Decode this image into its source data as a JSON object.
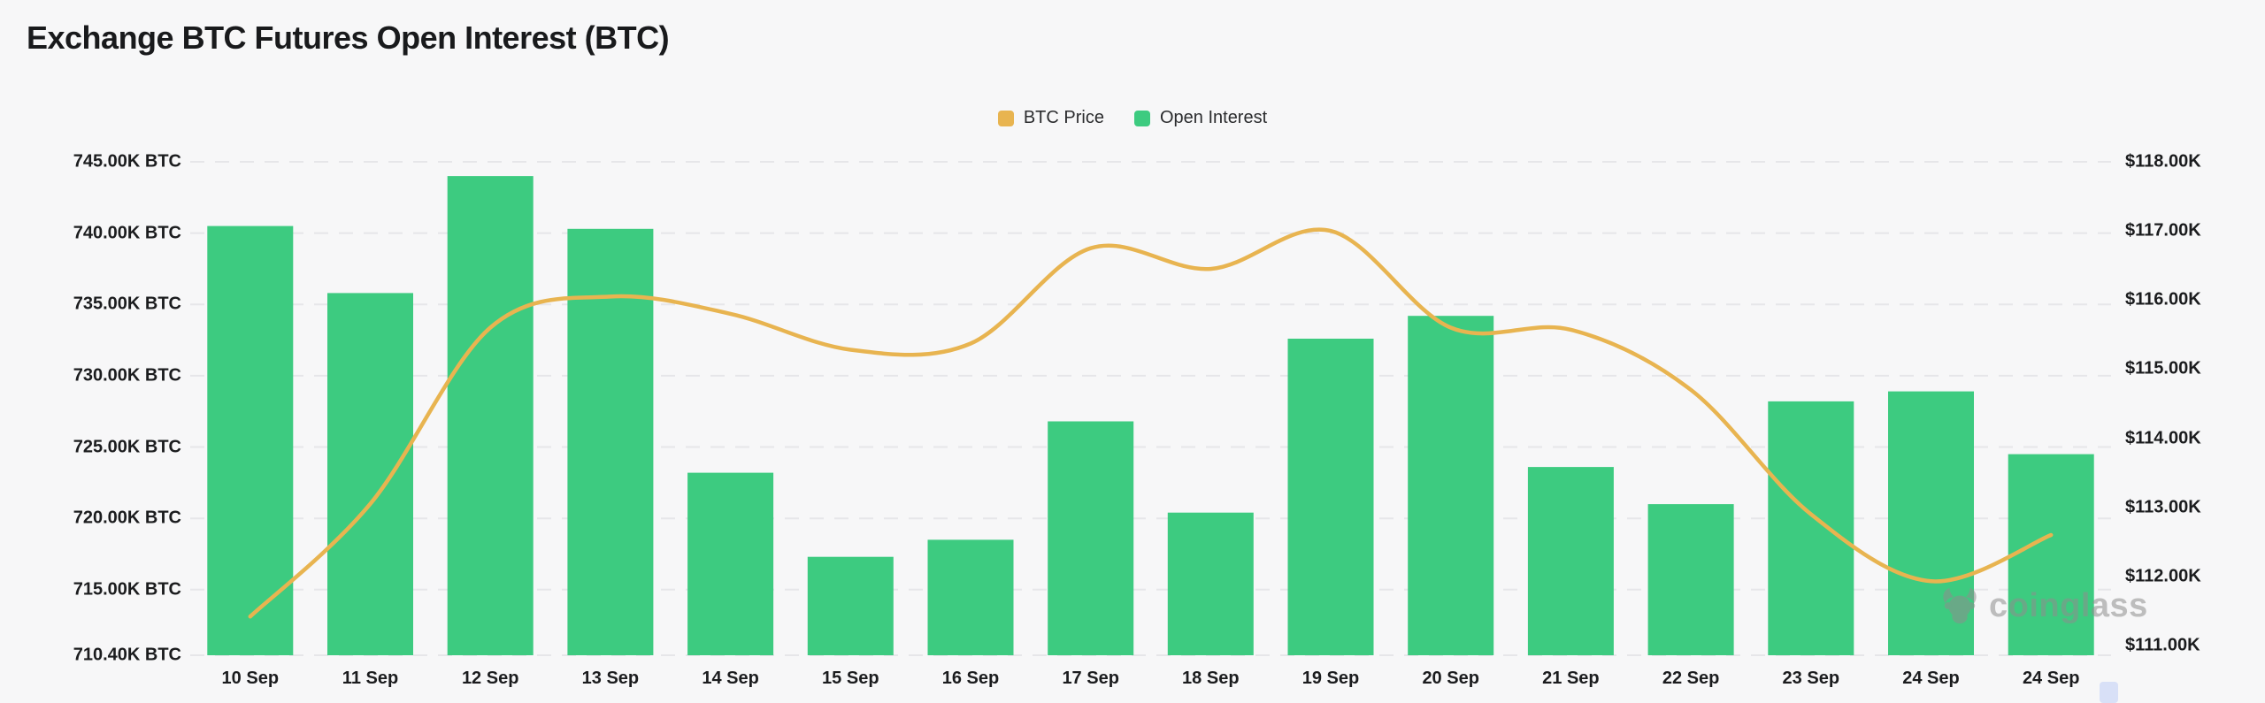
{
  "header": {
    "title": "Exchange BTC Futures Open Interest (BTC)"
  },
  "legend": {
    "items": [
      {
        "label": "BTC Price",
        "color": "#e8b450"
      },
      {
        "label": "Open Interest",
        "color": "#3dcb80"
      }
    ]
  },
  "watermark": {
    "brand": "coinglass"
  },
  "chart_data": {
    "type": "bar+line combo",
    "title": "Exchange BTC Futures Open Interest (BTC)",
    "legend_position": "top-center",
    "grid": "horizontal dashed gridlines on light background",
    "categories": [
      "10 Sep",
      "11 Sep",
      "12 Sep",
      "13 Sep",
      "14 Sep",
      "15 Sep",
      "16 Sep",
      "17 Sep",
      "18 Sep",
      "19 Sep",
      "20 Sep",
      "21 Sep",
      "22 Sep",
      "23 Sep",
      "24 Sep",
      "24 Sep"
    ],
    "series": [
      {
        "name": "Open Interest",
        "type": "bar",
        "y_axis": "left",
        "unit": "K BTC",
        "color": "#3dcb80",
        "values": [
          740.5,
          735.8,
          744.0,
          740.3,
          723.2,
          717.3,
          718.5,
          726.8,
          720.4,
          732.6,
          734.2,
          723.6,
          721.0,
          728.2,
          728.9,
          724.5
        ]
      },
      {
        "name": "BTC Price",
        "type": "line",
        "y_axis": "right",
        "unit": "$K",
        "color": "#e8b450",
        "smooth": true,
        "values": [
          111.42,
          113.05,
          115.6,
          116.05,
          115.8,
          115.28,
          115.37,
          116.75,
          116.45,
          117.0,
          115.6,
          115.57,
          114.7,
          112.9,
          111.93,
          112.6
        ]
      }
    ],
    "left_axis": {
      "min": 710.4,
      "max": 745,
      "tick_values": [
        745,
        740,
        735,
        730,
        725,
        720,
        715,
        710.4
      ],
      "tick_labels": [
        "745.00K BTC",
        "740.00K BTC",
        "735.00K BTC",
        "730.00K BTC",
        "725.00K BTC",
        "720.00K BTC",
        "715.00K BTC",
        "710.40K BTC"
      ]
    },
    "right_axis": {
      "tick_values": [
        118,
        117,
        116,
        115,
        114,
        113,
        112,
        111
      ],
      "tick_labels": [
        "$118.00K",
        "$117.00K",
        "$116.00K",
        "$115.00K",
        "$114.00K",
        "$113.00K",
        "$112.00K",
        "$111.00K"
      ]
    },
    "colors": {
      "background": "#f7f7f8",
      "gridline": "#e6e6e9",
      "bar": "#3dcb80",
      "line": "#e8b450",
      "text": "#1b1c1e"
    }
  }
}
